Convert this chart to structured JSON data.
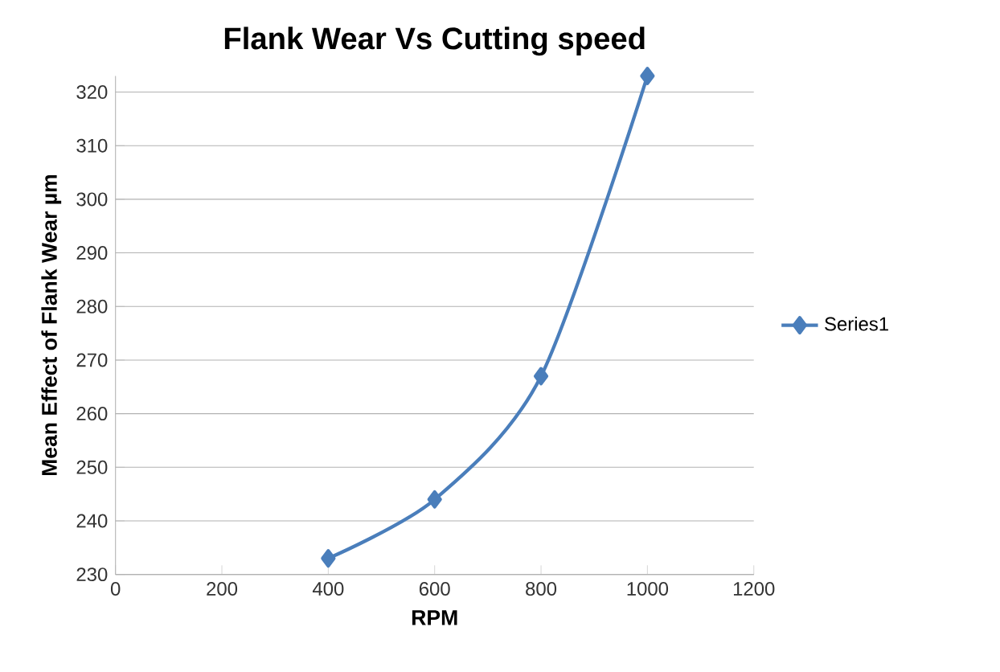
{
  "chart_data": {
    "type": "line",
    "title": "Flank Wear Vs Cutting speed",
    "xlabel": "RPM",
    "ylabel": "Mean Effect of Flank Wear µm",
    "x": [
      400,
      600,
      800,
      1000
    ],
    "series": [
      {
        "name": "Series1",
        "color": "#4a7ebb",
        "values": [
          233,
          244,
          267,
          323
        ]
      }
    ],
    "xlim": [
      0,
      1200
    ],
    "xticks": [
      0,
      200,
      400,
      600,
      800,
      1000,
      1200
    ],
    "ylim": [
      230,
      323
    ],
    "yticks": [
      230,
      240,
      250,
      260,
      270,
      280,
      290,
      300,
      310,
      320
    ],
    "grid": "y",
    "legend": "right",
    "marker": "diamond",
    "line_style": "solid"
  }
}
